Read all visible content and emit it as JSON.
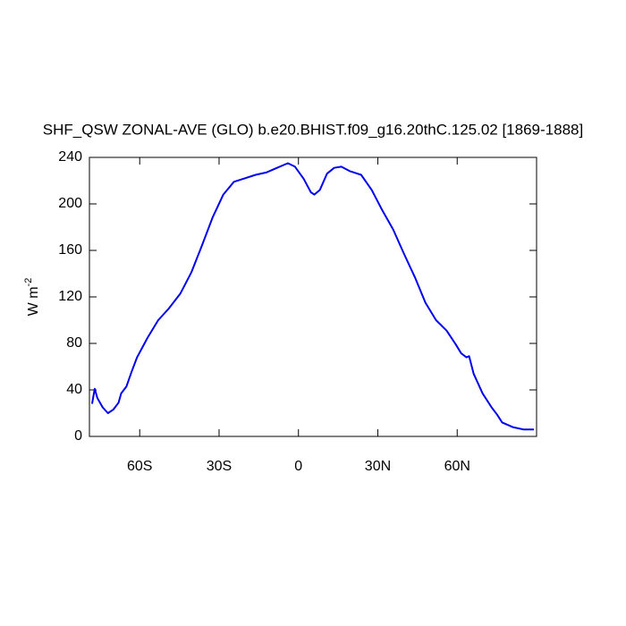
{
  "chart_data": {
    "type": "line",
    "title": "SHF_QSW ZONAL-AVE (GLO) b.e20.BHIST.f09_g16.20thC.125.02 [1869-1888]",
    "ylabel": "W m",
    "ylabel_superscript": "-2",
    "xlim": [
      -79,
      90
    ],
    "ylim": [
      0,
      240
    ],
    "xticks": [
      {
        "value": -60,
        "label": "60S"
      },
      {
        "value": -30,
        "label": "30S"
      },
      0,
      {
        "value": 30,
        "label": "30N"
      },
      {
        "value": 60,
        "label": "60N"
      }
    ],
    "yticks": [
      0,
      40,
      80,
      120,
      160,
      200,
      240
    ],
    "grid": false,
    "series": [
      {
        "color": "#0000ee",
        "x": [
          -78,
          -77,
          -76,
          -74,
          -72,
          -70,
          -68,
          -67,
          -65,
          -63,
          -61,
          -57,
          -53,
          -49,
          -44.6,
          -40.5,
          -36.5,
          -32.5,
          -28.4,
          -24.4,
          -20.3,
          -16.2,
          -12.2,
          -8.1,
          -4.0,
          -1.3,
          2,
          4.7,
          6,
          8.1,
          10.8,
          13.5,
          16.2,
          19.6,
          23.7,
          27.7,
          31.8,
          35.8,
          39.9,
          44,
          48,
          52,
          56,
          59.5,
          61.5,
          63.5,
          64.5,
          66.2,
          69.6,
          73,
          75,
          77,
          81,
          85,
          89
        ],
        "values": [
          28,
          41,
          33,
          25,
          20,
          23,
          29,
          37,
          43,
          56,
          68,
          85,
          100,
          110,
          123,
          141,
          164,
          188,
          208,
          219,
          222,
          225,
          227,
          231,
          235,
          232,
          221.5,
          210,
          208,
          212,
          226,
          231,
          232,
          228,
          225,
          212,
          194,
          178,
          157,
          137,
          115,
          100,
          91,
          79,
          71.5,
          68,
          69,
          54,
          37,
          25,
          19,
          12,
          8,
          6,
          6
        ]
      }
    ]
  }
}
